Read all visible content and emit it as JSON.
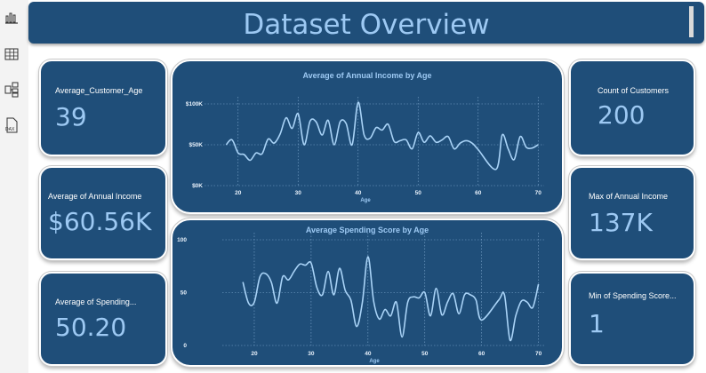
{
  "sidebar": {
    "items": [
      {
        "icon": "report-view-icon"
      },
      {
        "icon": "table-view-icon"
      },
      {
        "icon": "model-view-icon"
      },
      {
        "icon": "dax-query-icon"
      }
    ]
  },
  "title": "Dataset Overview",
  "kpis": {
    "avg_age": {
      "label": "Average_Customer_Age",
      "value": "39"
    },
    "avg_income": {
      "label": "Average of Annual Income",
      "value": "$60.56K"
    },
    "avg_spending": {
      "label": "Average of Spending...",
      "value": "50.20"
    },
    "count_customers": {
      "label": "Count of Customers",
      "value": "200"
    },
    "max_income": {
      "label": "Max of Annual Income",
      "value": "137K"
    },
    "min_spending": {
      "label": "Min of Spending Score...",
      "value": "1"
    }
  },
  "colors": {
    "card": "#1f4e79",
    "accent": "#9dc9f3",
    "line": "#a9d3f7",
    "background": "#ffffff"
  },
  "chart_data": [
    {
      "type": "line",
      "title": "Average of Annual Income by Age",
      "xlabel": "Age",
      "ylabel": "",
      "x": [
        18,
        19,
        20,
        21,
        22,
        23,
        24,
        25,
        26,
        27,
        28,
        29,
        30,
        31,
        32,
        33,
        34,
        35,
        36,
        37,
        38,
        39,
        40,
        41,
        42,
        43,
        44,
        45,
        46,
        47,
        48,
        49,
        50,
        51,
        52,
        53,
        54,
        55,
        56,
        57,
        58,
        59,
        60,
        63,
        64,
        65,
        66,
        67,
        68,
        69,
        70
      ],
      "values": [
        50000,
        56000,
        40000,
        38000,
        31000,
        40000,
        39000,
        57000,
        52000,
        63000,
        83000,
        70000,
        88000,
        50000,
        79000,
        78000,
        62000,
        80000,
        50000,
        78000,
        76000,
        50000,
        102000,
        62000,
        58000,
        71000,
        68000,
        75000,
        54000,
        55000,
        56000,
        45000,
        65000,
        53000,
        61000,
        53000,
        56000,
        60000,
        45000,
        52000,
        55000,
        52000,
        44000,
        20000,
        62000,
        45000,
        32000,
        60000,
        47000,
        46000,
        50000
      ],
      "xticks": [
        "20",
        "30",
        "40",
        "50",
        "60",
        "70"
      ],
      "yticks": [
        "$0K",
        "$50K",
        "$100K"
      ],
      "ylim": [
        0,
        100000
      ],
      "xlim": [
        15,
        71
      ],
      "grid": true
    },
    {
      "type": "line",
      "title": "Average Spending Score by Age",
      "xlabel": "Age",
      "ylabel": "",
      "x": [
        18,
        19,
        20,
        21,
        22,
        23,
        24,
        25,
        26,
        27,
        28,
        29,
        30,
        31,
        32,
        33,
        34,
        35,
        36,
        37,
        38,
        39,
        40,
        41,
        42,
        43,
        44,
        45,
        46,
        47,
        48,
        49,
        50,
        51,
        52,
        53,
        54,
        55,
        56,
        57,
        58,
        59,
        60,
        63,
        64,
        65,
        66,
        67,
        68,
        69,
        70
      ],
      "values": [
        60,
        40,
        41,
        65,
        68,
        60,
        40,
        65,
        62,
        70,
        77,
        76,
        78,
        55,
        48,
        70,
        48,
        73,
        52,
        43,
        18,
        40,
        84,
        42,
        25,
        34,
        28,
        41,
        8,
        41,
        46,
        45,
        50,
        28,
        54,
        29,
        41,
        49,
        30,
        48,
        48,
        43,
        24,
        43,
        48,
        5,
        28,
        42,
        41,
        36,
        58
      ],
      "xticks": [
        "20",
        "30",
        "40",
        "50",
        "60",
        "70"
      ],
      "yticks": [
        "0",
        "50",
        "100"
      ],
      "ylim": [
        0,
        100
      ],
      "xlim": [
        15,
        71
      ],
      "grid": true
    }
  ]
}
